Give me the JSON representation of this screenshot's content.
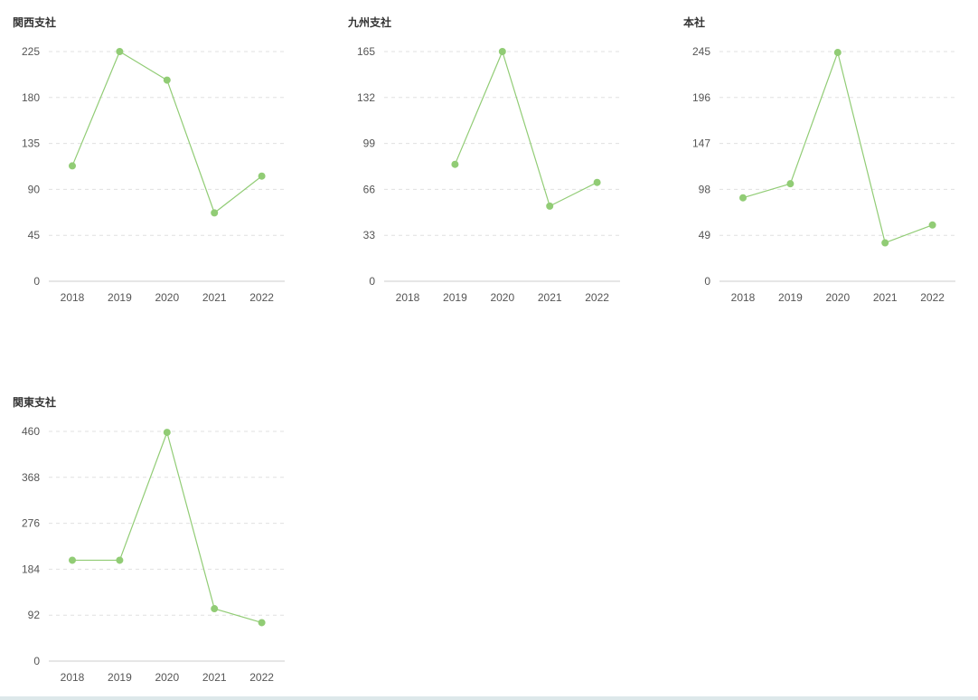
{
  "chart_data": [
    {
      "type": "line",
      "title": "関西支社",
      "categories": [
        "2018",
        "2019",
        "2020",
        "2021",
        "2022"
      ],
      "values": [
        113,
        225,
        197,
        67,
        103
      ],
      "yticks": [
        "0",
        "45",
        "90",
        "135",
        "180",
        "225"
      ],
      "ylim": [
        0,
        225
      ],
      "grid": true,
      "color": "#91cc75"
    },
    {
      "type": "line",
      "title": "九州支社",
      "categories": [
        "2018",
        "2019",
        "2020",
        "2021",
        "2022"
      ],
      "values": [
        null,
        84,
        165,
        54,
        71
      ],
      "yticks": [
        "0",
        "33",
        "66",
        "99",
        "132",
        "165"
      ],
      "ylim": [
        0,
        165
      ],
      "grid": true,
      "color": "#91cc75"
    },
    {
      "type": "line",
      "title": "本社",
      "categories": [
        "2018",
        "2019",
        "2020",
        "2021",
        "2022"
      ],
      "values": [
        89,
        104,
        244,
        41,
        60
      ],
      "yticks": [
        "0",
        "49",
        "98",
        "147",
        "196",
        "245"
      ],
      "ylim": [
        0,
        245
      ],
      "grid": true,
      "color": "#91cc75"
    },
    {
      "type": "line",
      "title": "関東支社",
      "categories": [
        "2018",
        "2019",
        "2020",
        "2021",
        "2022"
      ],
      "values": [
        202,
        202,
        458,
        105,
        77
      ],
      "yticks": [
        "0",
        "92",
        "184",
        "276",
        "368",
        "460"
      ],
      "ylim": [
        0,
        460
      ],
      "grid": true,
      "color": "#91cc75"
    }
  ]
}
